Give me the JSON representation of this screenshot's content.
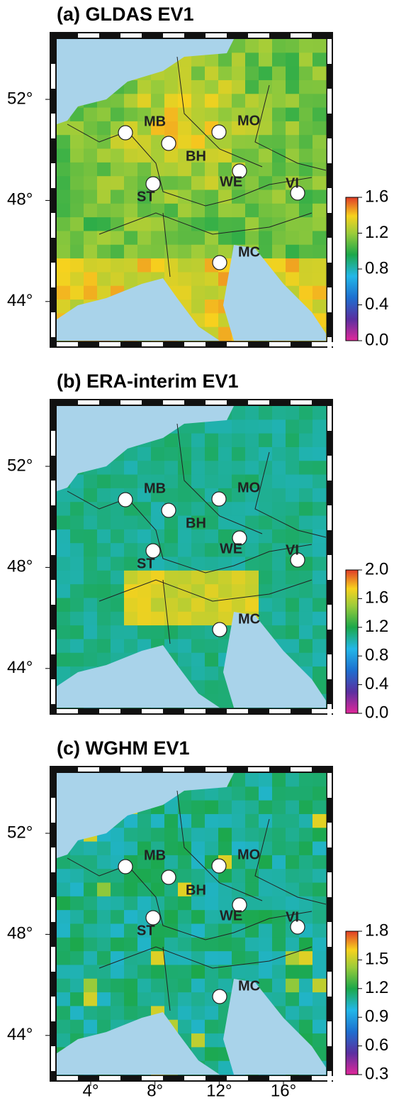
{
  "panels": [
    {
      "title": "(a) GLDAS EV1",
      "clim": [
        0,
        1.6
      ],
      "colorbar_ticks": [
        1.6,
        1.2,
        0.8,
        0.4,
        {
          "value": 0,
          "label": "0.0"
        }
      ]
    },
    {
      "title": "(b) ERA-interim EV1",
      "clim": [
        0,
        2.0
      ],
      "colorbar_ticks": [
        {
          "value": 2.0,
          "label": "2.0"
        },
        1.6,
        1.2,
        0.8,
        0.4,
        {
          "value": 0,
          "label": "0.0"
        }
      ]
    },
    {
      "title": "(c) WGHM EV1",
      "clim": [
        0.3,
        1.8
      ],
      "colorbar_ticks": [
        1.8,
        1.5,
        1.2,
        0.9,
        0.6,
        0.3
      ]
    }
  ],
  "lat_labels": [
    {
      "value": 52,
      "label": "52°"
    },
    {
      "value": 48,
      "label": "48°"
    },
    {
      "value": 44,
      "label": "44°"
    }
  ],
  "lon_labels": [
    {
      "value": 4,
      "label": "4°"
    },
    {
      "value": 8,
      "label": "8°"
    },
    {
      "value": 12,
      "label": "12°"
    },
    {
      "value": 16,
      "label": "16°"
    }
  ],
  "stations": [
    "MB",
    "BH",
    "MO",
    "WE",
    "ST",
    "VI",
    "MC"
  ]
}
